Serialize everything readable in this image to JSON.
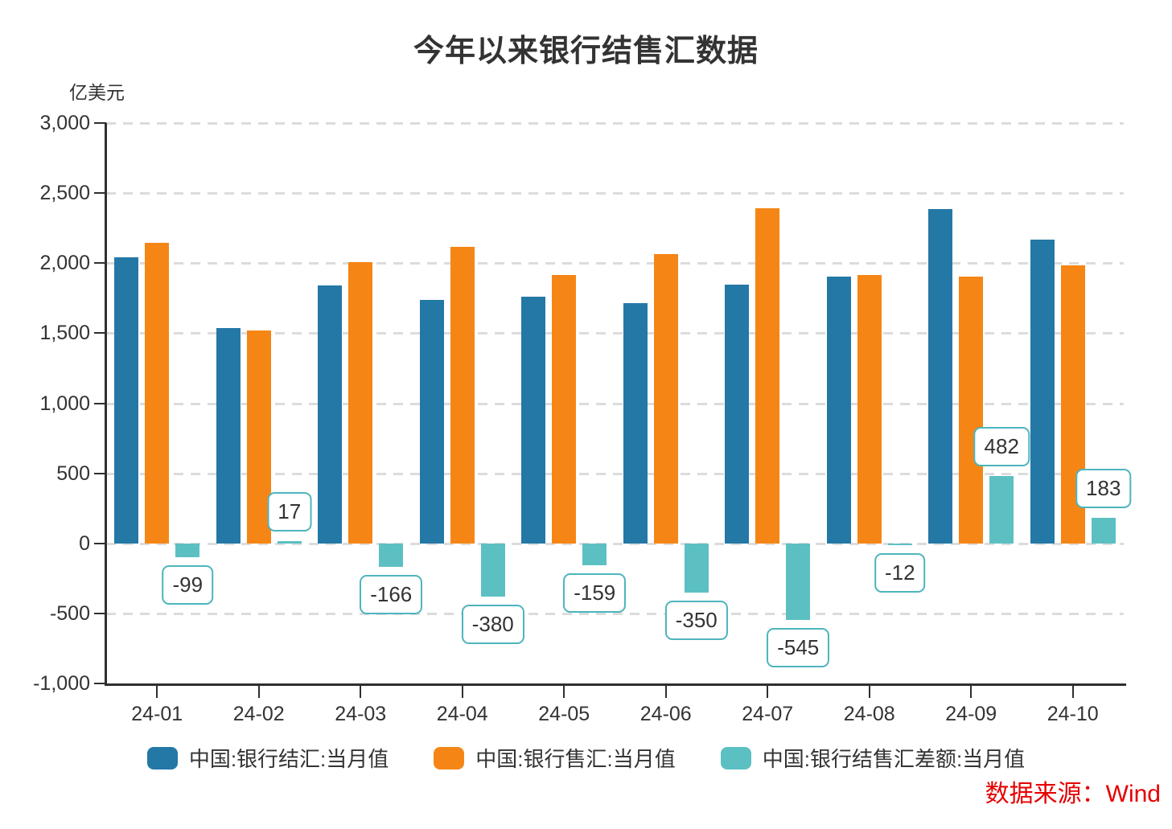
{
  "title": "今年以来银行结售汇数据",
  "unit_label": "亿美元",
  "source": "数据来源：Wind",
  "colors": {
    "settlement_blue": "#2478a6",
    "sales_orange": "#f58616",
    "balance_teal": "#5cc0c3",
    "label_box_border": "#4db5bd",
    "grid": "#dcdcdc",
    "axis": "#2f2f2f",
    "text": "#333333",
    "source_red": "#e60000"
  },
  "chart_data": {
    "type": "bar",
    "categories": [
      "24-01",
      "24-02",
      "24-03",
      "24-04",
      "24-05",
      "24-06",
      "24-07",
      "24-08",
      "24-09",
      "24-10"
    ],
    "series": [
      {
        "name": "中国:银行结汇:当月值",
        "color": "#2478a6",
        "values": [
          2044,
          1539,
          1843,
          1735,
          1758,
          1713,
          1847,
          1904,
          2386,
          2168
        ]
      },
      {
        "name": "中国:银行售汇:当月值",
        "color": "#f58616",
        "values": [
          2143,
          1522,
          2009,
          2115,
          1917,
          2063,
          2392,
          1916,
          1904,
          1985
        ]
      },
      {
        "name": "中国:银行结售汇差额:当月值",
        "color": "#5cc0c3",
        "labeled": true,
        "values": [
          -99,
          17,
          -166,
          -380,
          -159,
          -350,
          -545,
          -12,
          482,
          183
        ]
      }
    ],
    "data_labels": [
      "-99",
      "17",
      "-166",
      "-380",
      "-159",
      "-350",
      "-545",
      "-12",
      "482",
      "183"
    ],
    "ylabel": "亿美元",
    "ylim": [
      -1000,
      3000
    ],
    "ytick_step": 500,
    "grid": "dashed-horizontal",
    "legend_position": "bottom"
  }
}
